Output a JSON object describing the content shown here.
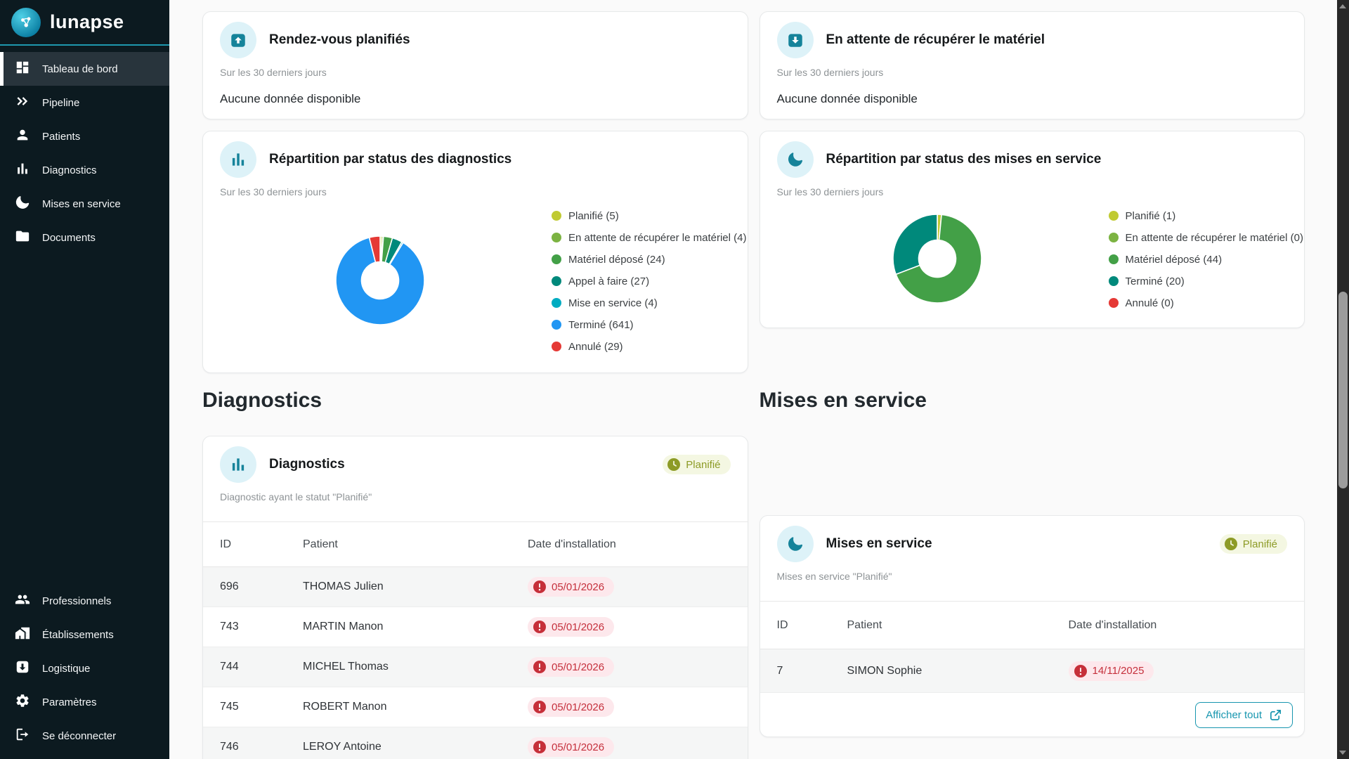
{
  "app": {
    "name": "lunapse"
  },
  "sidebar": {
    "items_top": [
      {
        "label": "Tableau de bord",
        "active": true
      },
      {
        "label": "Pipeline",
        "active": false
      },
      {
        "label": "Patients",
        "active": false
      },
      {
        "label": "Diagnostics",
        "active": false
      },
      {
        "label": "Mises en service",
        "active": false
      },
      {
        "label": "Documents",
        "active": false
      }
    ],
    "items_bottom": [
      {
        "label": "Professionnels"
      },
      {
        "label": "Établissements"
      },
      {
        "label": "Logistique"
      },
      {
        "label": "Paramètres"
      },
      {
        "label": "Se déconnecter"
      }
    ]
  },
  "stat_cards": {
    "rdv": {
      "title": "Rendez-vous planifiés",
      "subtitle": "Sur les 30 derniers jours",
      "empty": "Aucune donnée disponible"
    },
    "attente": {
      "title": "En attente de récupérer le matériel",
      "subtitle": "Sur les 30 derniers jours",
      "empty": "Aucune donnée disponible"
    }
  },
  "chart_data": [
    {
      "type": "pie",
      "variant": "donut",
      "title": "Répartition par status des diagnostics",
      "subtitle": "Sur les 30 derniers jours",
      "labels": [
        "Planifié",
        "En attente de récupérer le matériel",
        "Matériel déposé",
        "Appel à faire",
        "Mise en service",
        "Terminé",
        "Annulé"
      ],
      "values": [
        5,
        4,
        24,
        27,
        4,
        641,
        29
      ],
      "colors": [
        "#c0ca33",
        "#7cb342",
        "#43a047",
        "#00897b",
        "#00acc1",
        "#2196f3",
        "#e53935"
      ],
      "legend_position": "right",
      "start_angle": "top",
      "direction": "clockwise"
    },
    {
      "type": "pie",
      "variant": "donut",
      "title": "Répartition par status des mises en service",
      "subtitle": "Sur les 30 derniers jours",
      "labels": [
        "Planifié",
        "En attente de récupérer le matériel",
        "Matériel déposé",
        "Terminé",
        "Annulé"
      ],
      "values": [
        1,
        0,
        44,
        20,
        0
      ],
      "colors": [
        "#c0ca33",
        "#7cb342",
        "#43a047",
        "#00897b",
        "#e53935"
      ],
      "legend_position": "right",
      "start_angle": "top",
      "direction": "clockwise"
    }
  ],
  "sections": {
    "diagnostics": {
      "heading": "Diagnostics",
      "card_title": "Diagnostics",
      "badge": "Planifié",
      "subtitle": "Diagnostic ayant le statut \"Planifié\"",
      "columns": {
        "id": "ID",
        "patient": "Patient",
        "date": "Date d'installation"
      },
      "rows": [
        {
          "id": "696",
          "patient": "THOMAS Julien",
          "date": "05/01/2026"
        },
        {
          "id": "743",
          "patient": "MARTIN Manon",
          "date": "05/01/2026"
        },
        {
          "id": "744",
          "patient": "MICHEL Thomas",
          "date": "05/01/2026"
        },
        {
          "id": "745",
          "patient": "ROBERT Manon",
          "date": "05/01/2026"
        },
        {
          "id": "746",
          "patient": "LEROY Antoine",
          "date": "05/01/2026"
        }
      ]
    },
    "mises": {
      "heading": "Mises en service",
      "card_title": "Mises en service",
      "badge": "Planifié",
      "subtitle": "Mises en service \"Planifié\"",
      "columns": {
        "id": "ID",
        "patient": "Patient",
        "date": "Date d'installation"
      },
      "rows": [
        {
          "id": "7",
          "patient": "SIMON Sophie",
          "date": "14/11/2025"
        }
      ],
      "footer_button": "Afficher tout"
    }
  },
  "colors": {
    "accent_teal": "#1796af",
    "sidebar_bg": "#0c1a20",
    "sidebar_divider": "#1e98ae",
    "badge_olive": "#8d9b26",
    "badge_bg": "#f4f7e2",
    "alert_red": "#c5303c",
    "alert_bg": "#fde8ec",
    "icon_circle_bg": "#ddf2f8",
    "card_icon_teal": "#15839a"
  }
}
